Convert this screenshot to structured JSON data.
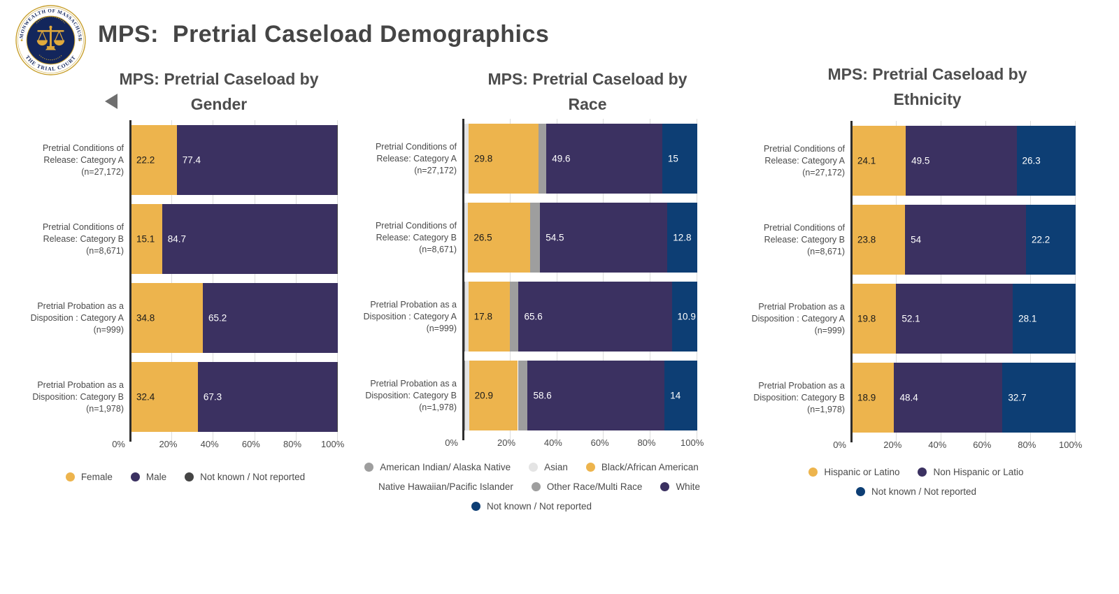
{
  "header": {
    "title": "MPS:  Pretrial Caseload Demographics",
    "seal": {
      "top_text": "COMMONWEALTH OF MASSACHUSETTS",
      "bottom_text": "THE TRIAL COURT"
    }
  },
  "icons": {
    "prev_arrow": "left-filled-triangle"
  },
  "colors": {
    "gold": "#EDB44D",
    "dark_purple": "#3B3161",
    "navy": "#0D3E74",
    "gray": "#9E9E9E",
    "light_gray": "#E4E4E4",
    "dark_gray": "#454545",
    "title_text": "#4D4D4D",
    "seal_navy": "#13265C",
    "seal_gold": "#C8A02E"
  },
  "chart_data": [
    {
      "type": "bar",
      "orientation": "horizontal",
      "stacked": true,
      "title": "MPS: Pretrial Caseload by Gender",
      "title_lines": [
        "MPS: Pretrial Caseload by",
        "Gender"
      ],
      "categories": [
        "Pretrial Conditions of Release: Category A (n=27,172)",
        "Pretrial Conditions of Release: Category B (n=8,671)",
        "Pretrial Probation as a Disposition : Category A (n=999)",
        "Pretrial Probation as a Disposition: Category B (n=1,978)"
      ],
      "category_lines": [
        [
          "Pretrial Conditions of",
          "Release: Category A",
          "(n=27,172)"
        ],
        [
          "Pretrial Conditions of",
          "Release: Category B",
          "(n=8,671)"
        ],
        [
          "Pretrial Probation as a",
          "Disposition : Category A",
          "(n=999)"
        ],
        [
          "Pretrial Probation as a",
          "Disposition: Category B",
          "(n=1,978)"
        ]
      ],
      "series": [
        {
          "name": "Female",
          "color": "#EDB44D",
          "label_color": "#1a1a1a",
          "values": [
            22.2,
            15.1,
            34.8,
            32.4
          ]
        },
        {
          "name": "Male",
          "color": "#3B3161",
          "label_color": "#ffffff",
          "values": [
            77.4,
            84.7,
            65.2,
            67.3
          ]
        },
        {
          "name": "Not known / Not reported",
          "color": "#454545",
          "label_color": "#ffffff",
          "values": [
            0.4,
            0.2,
            0,
            0.3
          ],
          "estimated": true
        }
      ],
      "x_ticks": [
        "0%",
        "20%",
        "40%",
        "60%",
        "80%",
        "100%"
      ],
      "xlim": [
        0,
        100
      ],
      "legend_position": "bottom"
    },
    {
      "type": "bar",
      "orientation": "horizontal",
      "stacked": true,
      "title": "MPS: Pretrial Caseload by Race",
      "title_lines": [
        "MPS: Pretrial Caseload by",
        "Race"
      ],
      "categories": [
        "Pretrial Conditions of Release: Category A (n=27,172)",
        "Pretrial Conditions of Release: Category B (n=8,671)",
        "Pretrial Probation as a Disposition : Category A (n=999)",
        "Pretrial Probation as a Disposition: Category B (n=1,978)"
      ],
      "category_lines": [
        [
          "Pretrial Conditions of",
          "Release: Category A",
          "(n=27,172)"
        ],
        [
          "Pretrial Conditions of",
          "Release: Category B",
          "(n=8,671)"
        ],
        [
          "Pretrial Probation as a",
          "Disposition : Category A",
          "(n=999)"
        ],
        [
          "Pretrial Probation as a",
          "Disposition: Category B",
          "(n=1,978)"
        ]
      ],
      "series": [
        {
          "name": "American Indian/ Alaska Native",
          "color": "#9E9E9E",
          "label_color": "#ffffff",
          "values": [
            0.3,
            0.3,
            0.6,
            0.6
          ],
          "estimated": true
        },
        {
          "name": "Asian",
          "color": "#E4E4E4",
          "label_color": "#4a4a4a",
          "values": [
            1.8,
            1.6,
            1.4,
            1.7
          ],
          "estimated": true
        },
        {
          "name": "Black/African American",
          "color": "#EDB44D",
          "label_color": "#1a1a1a",
          "values": [
            29.8,
            26.5,
            17.8,
            20.9
          ]
        },
        {
          "name": "Native Hawaiian/Pacific Islander",
          "color": "#FFFFFF",
          "label_color": "#4a4a4a",
          "values": [
            0.1,
            0.1,
            0.1,
            0.1
          ],
          "estimated": true
        },
        {
          "name": "Other Race/Multi Race",
          "color": "#9E9E9E",
          "label_color": "#ffffff",
          "values": [
            3.4,
            4.2,
            3.6,
            4.1
          ],
          "estimated": true
        },
        {
          "name": "White",
          "color": "#3B3161",
          "label_color": "#ffffff",
          "values": [
            49.6,
            54.5,
            65.6,
            58.6
          ]
        },
        {
          "name": "Not known / Not reported",
          "color": "#0D3E74",
          "label_color": "#ffffff",
          "values": [
            15,
            12.8,
            10.9,
            14
          ]
        }
      ],
      "x_ticks": [
        "0%",
        "20%",
        "40%",
        "60%",
        "80%",
        "100%"
      ],
      "xlim": [
        0,
        100
      ],
      "legend_position": "bottom"
    },
    {
      "type": "bar",
      "orientation": "horizontal",
      "stacked": true,
      "title": "MPS: Pretrial Caseload by Ethnicity",
      "title_lines": [
        "MPS: Pretrial Caseload by",
        "Ethnicity"
      ],
      "categories": [
        "Pretrial Conditions of Release: Category A (n=27,172)",
        "Pretrial Conditions of Release: Category B (n=8,671)",
        "Pretrial Probation as a Disposition : Category A (n=999)",
        "Pretrial Probation as a Disposition: Category B (n=1,978)"
      ],
      "category_lines": [
        [
          "Pretrial Conditions of",
          "Release: Category A",
          "(n=27,172)"
        ],
        [
          "Pretrial Conditions of",
          "Release: Category B",
          "(n=8,671)"
        ],
        [
          "Pretrial Probation as a",
          "Disposition : Category A",
          "(n=999)"
        ],
        [
          "Pretrial Probation as a",
          "Disposition: Category B",
          "(n=1,978)"
        ]
      ],
      "series": [
        {
          "name": "Hispanic or Latino",
          "color": "#EDB44D",
          "label_color": "#1a1a1a",
          "values": [
            24.1,
            23.8,
            19.8,
            18.9
          ]
        },
        {
          "name": "Non Hispanic or Latio",
          "color": "#3B3161",
          "label_color": "#ffffff",
          "values": [
            49.5,
            54,
            52.1,
            48.4
          ]
        },
        {
          "name": "Not known / Not reported",
          "color": "#0D3E74",
          "label_color": "#ffffff",
          "values": [
            26.3,
            22.2,
            28.1,
            32.7
          ]
        }
      ],
      "x_ticks": [
        "0%",
        "20%",
        "40%",
        "60%",
        "80%",
        "100%"
      ],
      "xlim": [
        0,
        100
      ],
      "legend_position": "bottom"
    }
  ]
}
